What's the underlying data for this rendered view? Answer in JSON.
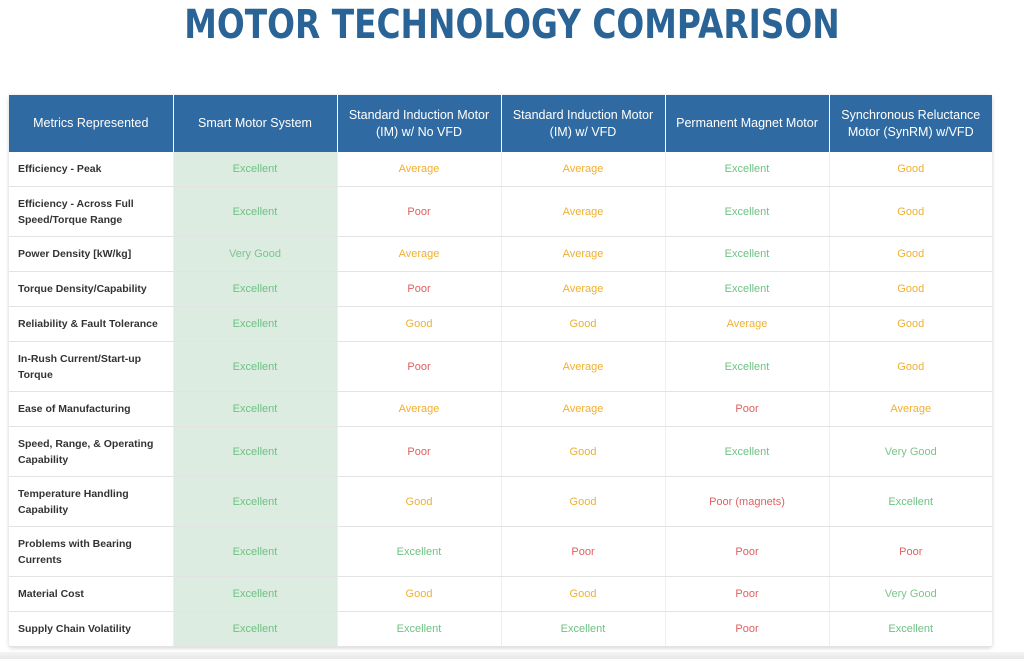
{
  "title": "MOTOR TECHNOLOGY COMPARISON",
  "colors": {
    "header_bg": "#2f6aa3",
    "title": "#2a6496",
    "highlight_column": "#dcece0",
    "excellent": "#6cc283",
    "good_average": "#f0b030",
    "poor": "#e06060"
  },
  "headers": [
    "Metrics Represented",
    "Smart Motor System",
    "Standard Induction Motor (IM) w/ No VFD",
    "Standard Induction Motor (IM) w/ VFD",
    "Permanent Magnet Motor",
    "Synchronous Reluctance Motor (SynRM) w/VFD"
  ],
  "rows": [
    {
      "metric": "Efficiency - Peak",
      "values": [
        "Excellent",
        "Average",
        "Average",
        "Excellent",
        "Good"
      ]
    },
    {
      "metric": "Efficiency - Across Full Speed/Torque Range",
      "values": [
        "Excellent",
        "Poor",
        "Average",
        "Excellent",
        "Good"
      ]
    },
    {
      "metric": "Power Density [kW/kg]",
      "values": [
        "Very Good",
        "Average",
        "Average",
        "Excellent",
        "Good"
      ]
    },
    {
      "metric": "Torque Density/Capability",
      "values": [
        "Excellent",
        "Poor",
        "Average",
        "Excellent",
        "Good"
      ]
    },
    {
      "metric": "Reliability & Fault Tolerance",
      "values": [
        "Excellent",
        "Good",
        "Good",
        "Average",
        "Good"
      ]
    },
    {
      "metric": "In-Rush Current/Start-up Torque",
      "values": [
        "Excellent",
        "Poor",
        "Average",
        "Excellent",
        "Good"
      ]
    },
    {
      "metric": "Ease of Manufacturing",
      "values": [
        "Excellent",
        "Average",
        "Average",
        "Poor",
        "Average"
      ]
    },
    {
      "metric": "Speed, Range, & Operating Capability",
      "values": [
        "Excellent",
        "Poor",
        "Good",
        "Excellent",
        "Very Good"
      ]
    },
    {
      "metric": "Temperature Handling Capability",
      "values": [
        "Excellent",
        "Good",
        "Good",
        "Poor (magnets)",
        "Excellent"
      ]
    },
    {
      "metric": "Problems with Bearing Currents",
      "values": [
        "Excellent",
        "Excellent",
        "Poor",
        "Poor",
        "Poor"
      ]
    },
    {
      "metric": "Material Cost",
      "values": [
        "Excellent",
        "Good",
        "Good",
        "Poor",
        "Very Good"
      ]
    },
    {
      "metric": "Supply Chain Volatility",
      "values": [
        "Excellent",
        "Excellent",
        "Excellent",
        "Poor",
        "Excellent"
      ]
    }
  ]
}
